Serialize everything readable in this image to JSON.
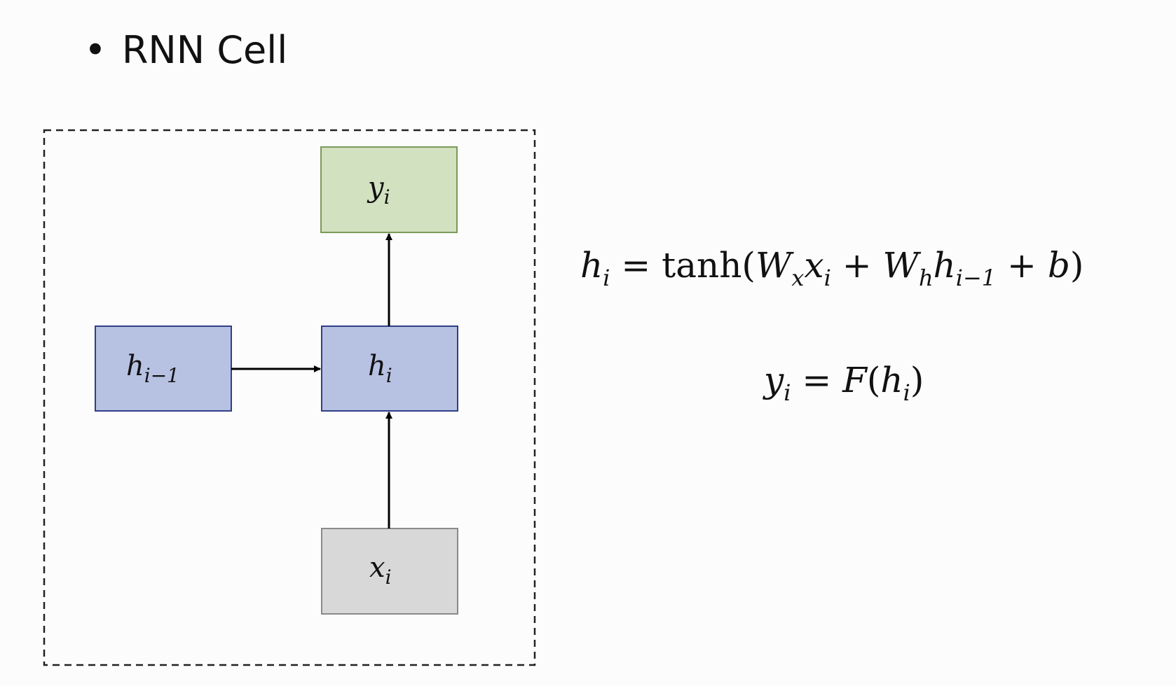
{
  "heading": {
    "bullet": "•",
    "text": "RNN Cell"
  },
  "diagram": {
    "nodes": {
      "y_i": {
        "base": "y",
        "sub": "i",
        "fill": "#d2e1c0",
        "stroke": "#7a9a5a"
      },
      "h_prev": {
        "base": "h",
        "sub": "i−1",
        "fill": "#b7c1e2",
        "stroke": "#2f3f86"
      },
      "h_i": {
        "base": "h",
        "sub": "i",
        "fill": "#b7c1e2",
        "stroke": "#2f3f86"
      },
      "x_i": {
        "base": "x",
        "sub": "i",
        "fill": "#d8d8d8",
        "stroke": "#8a8a8a"
      }
    },
    "arrow_color": "#000000",
    "frame_color": "#222222"
  },
  "equations": {
    "eq1": {
      "h": "h",
      "h_sub": "i",
      "eq": " = ",
      "func": "tanh(",
      "W1": "W",
      "W1_sub": "x",
      "x": "x",
      "x_sub": "i",
      "plus1": " + ",
      "W2": "W",
      "W2_sub": "h",
      "h2": "h",
      "h2_sub": "i−1",
      "plus2": " + ",
      "b": "b",
      "close": ")"
    },
    "eq2": {
      "y": "y",
      "y_sub": "i",
      "eq": " = ",
      "F": "F",
      "open": "(",
      "h": "h",
      "h_sub": "i",
      "close": ")"
    }
  }
}
